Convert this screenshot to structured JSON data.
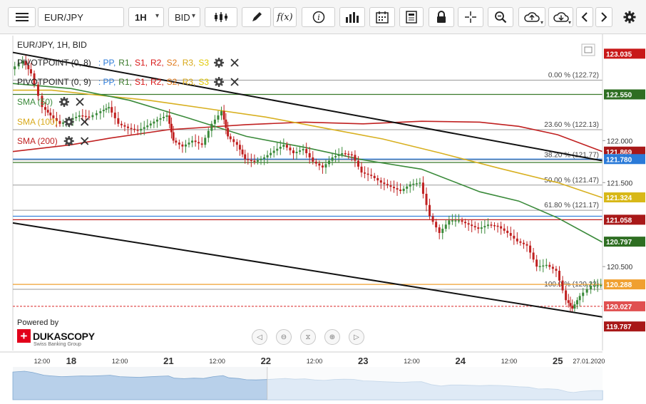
{
  "toolbar": {
    "instrument": "EUR/JPY",
    "timeframe": "1H",
    "price_side": "BID",
    "icons": [
      "menu-icon",
      "candlestick-icon",
      "draw-icon",
      "function-icon",
      "info-icon",
      "volume-icon",
      "calendar-icon",
      "report-icon",
      "lock-icon",
      "crosshair-icon",
      "zoom-icon",
      "upload-icon",
      "download-icon",
      "chevron-left-icon",
      "chevron-right-icon",
      "gear-icon"
    ]
  },
  "chart_data": {
    "type": "line",
    "title": "EUR/JPY, 1H, BID",
    "y_ticks": [
      "122.000",
      "121.500",
      "120.500"
    ],
    "ylim": [
      119.5,
      123.25
    ],
    "x_labels": [
      {
        "text": "12:00",
        "day": false,
        "x": 1.5
      },
      {
        "text": "18",
        "day": true,
        "x": 3
      },
      {
        "text": "12:00",
        "day": false,
        "x": 5.5
      },
      {
        "text": "21",
        "day": true,
        "x": 8
      },
      {
        "text": "12:00",
        "day": false,
        "x": 10.5
      },
      {
        "text": "22",
        "day": true,
        "x": 13
      },
      {
        "text": "12:00",
        "day": false,
        "x": 15.5
      },
      {
        "text": "23",
        "day": true,
        "x": 18
      },
      {
        "text": "12:00",
        "day": false,
        "x": 20.5
      },
      {
        "text": "24",
        "day": true,
        "x": 23
      },
      {
        "text": "12:00",
        "day": false,
        "x": 25.5
      },
      {
        "text": "25",
        "day": true,
        "x": 28
      },
      {
        "text": "27.01.2020",
        "day": false,
        "x": 29.6
      }
    ],
    "xlim": [
      0,
      30.3
    ],
    "legend": [
      {
        "label": "PIVOTPOINT (0, 8)",
        "pivots": [
          {
            "t": ": PP,",
            "c": "#2a7ad8"
          },
          {
            "t": "R1,",
            "c": "#3a7a2a"
          },
          {
            "t": "S1,",
            "c": "#d81818"
          },
          {
            "t": "R2,",
            "c": "#d81818"
          },
          {
            "t": "S2,",
            "c": "#e07818"
          },
          {
            "t": "R3,",
            "c": "#d8a818"
          },
          {
            "t": "S3",
            "c": "#e0c800"
          }
        ]
      },
      {
        "label": "PIVOTPOINT (0, 9)",
        "pivots": [
          {
            "t": ": PP,",
            "c": "#2a7ad8"
          },
          {
            "t": "R1,",
            "c": "#3a7a2a"
          },
          {
            "t": "S1,",
            "c": "#d81818"
          },
          {
            "t": "R2,",
            "c": "#d81818"
          },
          {
            "t": "S2,",
            "c": "#e07818"
          },
          {
            "t": "R3,",
            "c": "#d8a818"
          },
          {
            "t": "S3",
            "c": "#e0c800"
          }
        ]
      },
      {
        "label": "SMA (50)",
        "color": "#3a8a3a"
      },
      {
        "label": "SMA (100)",
        "color": "#d8a818"
      },
      {
        "label": "SMA (200)",
        "color": "#c02020"
      }
    ],
    "fib_levels": [
      {
        "label": "0.00 % (122.72)",
        "value": 122.72
      },
      {
        "label": "23.60 % (122.13)",
        "value": 122.13
      },
      {
        "label": "38.20 % (121.77)",
        "value": 121.77
      },
      {
        "label": "50.00 % (121.47)",
        "value": 121.47
      },
      {
        "label": "61.80 % (121.17)",
        "value": 121.17
      },
      {
        "label": "100.0 % (120.23)",
        "value": 120.23
      }
    ],
    "pivot_lines": [
      {
        "value": 122.55,
        "color": "#3a7a2a"
      },
      {
        "value": 121.74,
        "color": "#3a7a2a"
      },
      {
        "value": 121.78,
        "color": "#2a7ad8"
      },
      {
        "value": 121.058,
        "color": "#c02020"
      },
      {
        "value": 121.1,
        "color": "#2a7ad8"
      },
      {
        "value": 120.288,
        "color": "#f0a030"
      },
      {
        "value": 120.027,
        "color": "#e05050"
      }
    ],
    "price_labels": [
      {
        "text": "123.035",
        "value": 123.035,
        "bg": "#c81818"
      },
      {
        "text": "122.550",
        "value": 122.55,
        "bg": "#2e6e22"
      },
      {
        "text": "121.869",
        "value": 121.869,
        "bg": "#a81818"
      },
      {
        "text": "121.780",
        "value": 121.78,
        "bg": "#2a7ad8"
      },
      {
        "text": "121.324",
        "value": 121.324,
        "bg": "#d8b818"
      },
      {
        "text": "121.058",
        "value": 121.058,
        "bg": "#a81818"
      },
      {
        "text": "120.797",
        "value": 120.797,
        "bg": "#2e6e22"
      },
      {
        "text": "120.288",
        "value": 120.288,
        "bg": "#f0a030"
      },
      {
        "text": "120.027",
        "value": 120.027,
        "bg": "#e05050"
      },
      {
        "text": "119.787",
        "value": 119.787,
        "bg": "#a81818"
      }
    ],
    "trend_lines": [
      {
        "x1": 0,
        "y1": 123.05,
        "x2": 30.3,
        "y2": 121.76
      },
      {
        "x1": 0,
        "y1": 121.02,
        "x2": 30.3,
        "y2": 119.9
      }
    ],
    "sma50": [
      [
        0,
        122.68
      ],
      [
        3,
        122.62
      ],
      [
        6,
        122.48
      ],
      [
        9,
        122.27
      ],
      [
        12,
        122.05
      ],
      [
        15,
        121.92
      ],
      [
        18,
        121.77
      ],
      [
        21,
        121.66
      ],
      [
        24,
        121.39
      ],
      [
        26,
        121.28
      ],
      [
        28,
        121.08
      ],
      [
        30.3,
        120.79
      ]
    ],
    "sma100": [
      [
        0,
        122.6
      ],
      [
        2,
        122.6
      ],
      [
        4,
        122.55
      ],
      [
        7,
        122.48
      ],
      [
        10,
        122.38
      ],
      [
        13,
        122.28
      ],
      [
        16,
        122.15
      ],
      [
        19,
        122.02
      ],
      [
        22,
        121.85
      ],
      [
        25,
        121.67
      ],
      [
        28,
        121.5
      ],
      [
        30.3,
        121.32
      ]
    ],
    "sma200": [
      [
        0,
        121.87
      ],
      [
        3,
        121.95
      ],
      [
        5,
        122.03
      ],
      [
        8,
        122.13
      ],
      [
        10,
        122.16
      ],
      [
        12,
        122.19
      ],
      [
        15,
        122.22
      ],
      [
        18,
        122.2
      ],
      [
        21,
        122.23
      ],
      [
        24,
        122.22
      ],
      [
        26,
        122.17
      ],
      [
        28,
        122.07
      ],
      [
        30.3,
        121.87
      ]
    ],
    "price": [
      [
        0,
        122.85
      ],
      [
        0.6,
        122.95
      ],
      [
        1,
        122.8
      ],
      [
        1.6,
        122.4
      ],
      [
        2,
        122.3
      ],
      [
        2.5,
        122.2
      ],
      [
        3,
        122.25
      ],
      [
        3.5,
        122.3
      ],
      [
        4,
        122.28
      ],
      [
        4.6,
        122.35
      ],
      [
        5,
        122.4
      ],
      [
        5.5,
        122.2
      ],
      [
        6,
        122.15
      ],
      [
        6.5,
        122.12
      ],
      [
        7,
        122.18
      ],
      [
        7.5,
        122.25
      ],
      [
        8,
        122.3
      ],
      [
        8.3,
        122.0
      ],
      [
        8.8,
        121.93
      ],
      [
        9.3,
        122.0
      ],
      [
        9.8,
        121.95
      ],
      [
        10.3,
        122.2
      ],
      [
        10.8,
        122.35
      ],
      [
        11.1,
        122.05
      ],
      [
        11.6,
        121.95
      ],
      [
        12,
        121.78
      ],
      [
        12.5,
        121.75
      ],
      [
        13,
        121.8
      ],
      [
        13.5,
        121.88
      ],
      [
        14,
        121.95
      ],
      [
        14.5,
        121.85
      ],
      [
        15,
        121.9
      ],
      [
        15.5,
        121.75
      ],
      [
        16,
        121.68
      ],
      [
        16.5,
        121.8
      ],
      [
        17,
        121.85
      ],
      [
        17.5,
        121.83
      ],
      [
        18,
        121.62
      ],
      [
        18.5,
        121.58
      ],
      [
        19,
        121.5
      ],
      [
        19.5,
        121.45
      ],
      [
        20,
        121.4
      ],
      [
        20.5,
        121.48
      ],
      [
        21,
        121.5
      ],
      [
        21.5,
        121.1
      ],
      [
        22,
        120.9
      ],
      [
        22.5,
        121.05
      ],
      [
        23,
        121.05
      ],
      [
        23.5,
        121.0
      ],
      [
        24,
        120.95
      ],
      [
        24.5,
        121.0
      ],
      [
        25,
        120.98
      ],
      [
        25.5,
        120.9
      ],
      [
        26,
        120.8
      ],
      [
        26.5,
        120.75
      ],
      [
        27,
        120.5
      ],
      [
        27.5,
        120.52
      ],
      [
        28,
        120.45
      ],
      [
        28.5,
        120.1
      ],
      [
        28.8,
        120.0
      ],
      [
        29.2,
        120.15
      ],
      [
        29.8,
        120.27
      ],
      [
        30.3,
        120.28
      ]
    ]
  }
}
